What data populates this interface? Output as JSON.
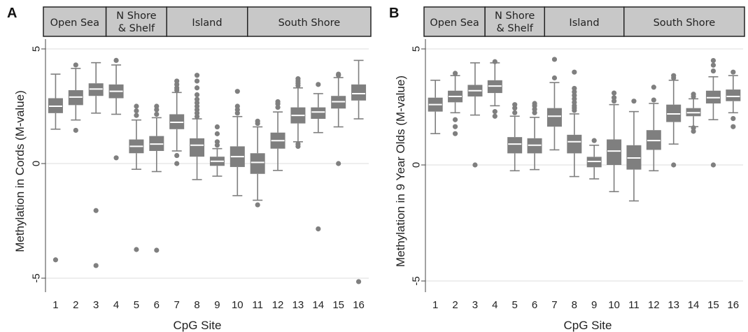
{
  "colors": {
    "box": "#7f7f7f",
    "median": "#ffffff",
    "grid": "#dcdcdc",
    "axis": "#444444",
    "strip_bg": "#c8c8c8",
    "strip_border": "#222222"
  },
  "chart_data": [
    {
      "panel": "A",
      "type": "box",
      "regions": [
        {
          "label": [
            "Open Sea"
          ],
          "sites": [
            1,
            3
          ]
        },
        {
          "label": [
            "N Shore",
            "& Shelf"
          ],
          "sites": [
            4,
            6
          ]
        },
        {
          "label": [
            "Island"
          ],
          "sites": [
            7,
            10
          ]
        },
        {
          "label": [
            "South Shore"
          ],
          "sites": [
            11,
            16
          ]
        }
      ],
      "categories": [
        "1",
        "2",
        "3",
        "4",
        "5",
        "6",
        "7",
        "8",
        "9",
        "10",
        "11",
        "12",
        "13",
        "14",
        "15",
        "16"
      ],
      "ylabel": "Methylation in Cords (M-value)",
      "xlabel": "CpG Site",
      "ylim": [
        -5.3,
        5.3
      ],
      "yticks": [
        5,
        0,
        -5
      ],
      "ytick_labels": [
        "5",
        "0",
        "-5"
      ],
      "grid": true,
      "boxes": [
        {
          "q1": 2.2,
          "median": 2.5,
          "q3": 2.85,
          "wlo": 1.5,
          "whi": 3.9,
          "outliers": [
            -4.2
          ]
        },
        {
          "q1": 2.55,
          "median": 2.9,
          "q3": 3.2,
          "wlo": 1.9,
          "whi": 4.15,
          "outliers": [
            1.45,
            4.3
          ]
        },
        {
          "q1": 2.95,
          "median": 3.25,
          "q3": 3.5,
          "wlo": 2.2,
          "whi": 4.4,
          "outliers": [
            -2.05,
            -4.45
          ]
        },
        {
          "q1": 2.85,
          "median": 3.15,
          "q3": 3.45,
          "wlo": 2.15,
          "whi": 4.3,
          "outliers": [
            0.25,
            4.5
          ]
        },
        {
          "q1": 0.45,
          "median": 0.75,
          "q3": 1.05,
          "wlo": -0.25,
          "whi": 1.9,
          "outliers": [
            2.1,
            2.3,
            2.5,
            -3.75
          ]
        },
        {
          "q1": 0.55,
          "median": 0.85,
          "q3": 1.2,
          "wlo": -0.35,
          "whi": 2.0,
          "outliers": [
            2.15,
            2.35,
            2.5,
            -3.78
          ]
        },
        {
          "q1": 1.5,
          "median": 1.8,
          "q3": 2.15,
          "wlo": 0.55,
          "whi": 3.1,
          "outliers": [
            0.0,
            0.35,
            3.2,
            3.3,
            3.45,
            3.6
          ]
        },
        {
          "q1": 0.3,
          "median": 0.8,
          "q3": 1.1,
          "wlo": -0.7,
          "whi": 1.95,
          "outliers": [
            2.05,
            2.2,
            2.35,
            2.5,
            2.65,
            2.8,
            3.0,
            3.3,
            3.6,
            3.85
          ]
        },
        {
          "q1": -0.1,
          "median": 0.1,
          "q3": 0.3,
          "wlo": -0.55,
          "whi": 0.65,
          "outliers": [
            0.8,
            0.95,
            1.3,
            1.6
          ]
        },
        {
          "q1": -0.15,
          "median": 0.3,
          "q3": 0.75,
          "wlo": -1.4,
          "whi": 2.05,
          "outliers": [
            2.2,
            2.35,
            2.5,
            3.15
          ]
        },
        {
          "q1": -0.45,
          "median": 0.05,
          "q3": 0.45,
          "wlo": -1.6,
          "whi": 1.6,
          "outliers": [
            1.75,
            1.85,
            -1.8
          ]
        },
        {
          "q1": 0.65,
          "median": 1.0,
          "q3": 1.35,
          "wlo": -0.3,
          "whi": 2.25,
          "outliers": [
            2.45,
            2.6,
            2.7
          ]
        },
        {
          "q1": 1.75,
          "median": 2.1,
          "q3": 2.45,
          "wlo": 0.95,
          "whi": 3.3,
          "outliers": [
            0.75,
            0.85,
            3.4,
            3.5,
            3.6,
            3.7
          ]
        },
        {
          "q1": 1.95,
          "median": 2.25,
          "q3": 2.45,
          "wlo": 1.35,
          "whi": 3.05,
          "outliers": [
            3.45,
            -2.85
          ]
        },
        {
          "q1": 2.4,
          "median": 2.7,
          "q3": 2.95,
          "wlo": 1.6,
          "whi": 3.75,
          "outliers": [
            0.0,
            3.85,
            3.9
          ]
        },
        {
          "q1": 2.75,
          "median": 3.05,
          "q3": 3.45,
          "wlo": 1.95,
          "whi": 4.5,
          "outliers": [
            -5.15
          ]
        }
      ]
    },
    {
      "panel": "B",
      "type": "box",
      "regions": [
        {
          "label": [
            "Open Sea"
          ],
          "sites": [
            1,
            3
          ]
        },
        {
          "label": [
            "N Shore",
            "& Shelf"
          ],
          "sites": [
            4,
            6
          ]
        },
        {
          "label": [
            "Island"
          ],
          "sites": [
            7,
            10
          ]
        },
        {
          "label": [
            "South Shore"
          ],
          "sites": [
            11,
            16
          ]
        }
      ],
      "categories": [
        "1",
        "2",
        "3",
        "4",
        "5",
        "6",
        "7",
        "8",
        "9",
        "10",
        "11",
        "12",
        "13",
        "14",
        "15",
        "16"
      ],
      "ylabel": "Methylation in 9 Year Olds (M-value)",
      "xlabel": "CpG Site",
      "ylim": [
        -5.3,
        5.3
      ],
      "yticks": [
        5,
        0,
        -5
      ],
      "ytick_labels": [
        "5",
        "0",
        "-5"
      ],
      "grid": true,
      "boxes": [
        {
          "q1": 2.3,
          "median": 2.6,
          "q3": 2.9,
          "wlo": 1.35,
          "whi": 3.65,
          "outliers": []
        },
        {
          "q1": 2.7,
          "median": 2.95,
          "q3": 3.2,
          "wlo": 2.25,
          "whi": 3.85,
          "outliers": [
            1.35,
            1.65,
            1.95,
            3.95
          ]
        },
        {
          "q1": 2.95,
          "median": 3.2,
          "q3": 3.45,
          "wlo": 2.15,
          "whi": 4.4,
          "outliers": [
            0.0
          ]
        },
        {
          "q1": 3.1,
          "median": 3.4,
          "q3": 3.65,
          "wlo": 2.55,
          "whi": 4.4,
          "outliers": [
            2.1,
            2.3,
            4.45
          ]
        },
        {
          "q1": 0.5,
          "median": 0.9,
          "q3": 1.2,
          "wlo": -0.25,
          "whi": 2.1,
          "outliers": [
            2.25,
            2.45,
            2.6
          ]
        },
        {
          "q1": 0.5,
          "median": 0.85,
          "q3": 1.15,
          "wlo": -0.2,
          "whi": 2.05,
          "outliers": [
            2.25,
            2.4,
            2.55,
            2.65
          ]
        },
        {
          "q1": 1.65,
          "median": 2.1,
          "q3": 2.45,
          "wlo": 0.65,
          "whi": 3.55,
          "outliers": [
            3.75,
            4.55
          ]
        },
        {
          "q1": 0.5,
          "median": 1.0,
          "q3": 1.3,
          "wlo": -0.5,
          "whi": 2.2,
          "outliers": [
            2.35,
            2.45,
            2.55,
            2.7,
            2.85,
            3.0,
            3.15,
            3.3,
            4.0
          ]
        },
        {
          "q1": -0.1,
          "median": 0.15,
          "q3": 0.35,
          "wlo": -0.6,
          "whi": 0.85,
          "outliers": [
            1.05
          ]
        },
        {
          "q1": 0.0,
          "median": 0.6,
          "q3": 1.1,
          "wlo": -1.15,
          "whi": 2.6,
          "outliers": [
            2.75,
            2.9,
            3.1
          ]
        },
        {
          "q1": -0.2,
          "median": 0.3,
          "q3": 0.85,
          "wlo": -1.55,
          "whi": 2.3,
          "outliers": [
            2.75
          ]
        },
        {
          "q1": 0.65,
          "median": 1.05,
          "q3": 1.5,
          "wlo": -0.25,
          "whi": 2.65,
          "outliers": [
            2.8,
            3.35
          ]
        },
        {
          "q1": 1.85,
          "median": 2.2,
          "q3": 2.6,
          "wlo": 0.9,
          "whi": 3.65,
          "outliers": [
            0.0,
            3.75,
            3.85
          ]
        },
        {
          "q1": 2.1,
          "median": 2.25,
          "q3": 2.45,
          "wlo": 1.65,
          "whi": 2.85,
          "outliers": [
            1.45,
            1.6,
            2.95,
            3.05
          ]
        },
        {
          "q1": 2.65,
          "median": 2.9,
          "q3": 3.2,
          "wlo": 1.95,
          "whi": 3.8,
          "outliers": [
            0.0,
            4.05,
            4.3,
            4.5
          ]
        },
        {
          "q1": 2.75,
          "median": 2.95,
          "q3": 3.25,
          "wlo": 2.25,
          "whi": 3.85,
          "outliers": [
            1.65,
            2.0,
            4.0
          ]
        }
      ]
    }
  ]
}
